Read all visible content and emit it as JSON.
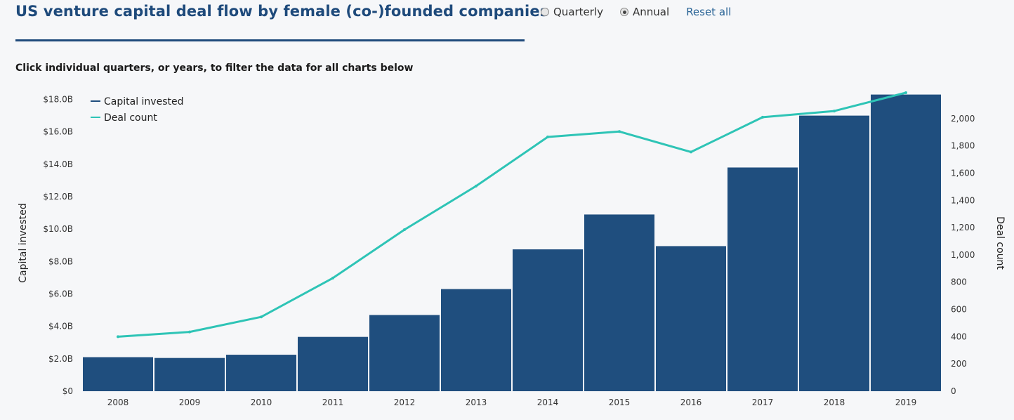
{
  "header": {
    "title": "US venture capital deal flow by female (co-)founded companies",
    "subtitle": "Click individual quarters, or years, to filter the data for all charts below"
  },
  "controls": {
    "quarterly_label": "Quarterly",
    "annual_label": "Annual",
    "selected": "Annual",
    "reset_label": "Reset all"
  },
  "colors": {
    "bar": "#1f4e7e",
    "line": "#2ec4b6",
    "title": "#1e4a7b"
  },
  "chart_data": {
    "type": "bar",
    "categories": [
      "2008",
      "2009",
      "2010",
      "2011",
      "2012",
      "2013",
      "2014",
      "2015",
      "2016",
      "2017",
      "2018",
      "2019"
    ],
    "series": [
      {
        "name": "Capital invested",
        "type": "bar",
        "axis": "left",
        "values": [
          2.1,
          2.05,
          2.25,
          3.35,
          4.7,
          6.3,
          8.75,
          10.9,
          8.95,
          13.8,
          17.0,
          18.3
        ]
      },
      {
        "name": "Deal count",
        "type": "line",
        "axis": "right",
        "values": [
          400,
          435,
          545,
          830,
          1185,
          1505,
          1865,
          1905,
          1755,
          2010,
          2055,
          2190
        ]
      }
    ],
    "title": "US venture capital deal flow by female (co-)founded companies",
    "ylabel": "Capital invested",
    "y2label": "Deal count",
    "ylim": [
      0,
      18.5
    ],
    "y2lim": [
      0,
      2200
    ],
    "yticks": [
      {
        "value": 0,
        "label": "$0"
      },
      {
        "value": 2,
        "label": "$2.0B"
      },
      {
        "value": 4,
        "label": "$4.0B"
      },
      {
        "value": 6,
        "label": "$6.0B"
      },
      {
        "value": 8,
        "label": "$8.0B"
      },
      {
        "value": 10,
        "label": "$10.0B"
      },
      {
        "value": 12,
        "label": "$12.0B"
      },
      {
        "value": 14,
        "label": "$14.0B"
      },
      {
        "value": 16,
        "label": "$16.0B"
      },
      {
        "value": 18,
        "label": "$18.0B"
      }
    ],
    "y2ticks": [
      {
        "value": 0,
        "label": "0"
      },
      {
        "value": 200,
        "label": "200"
      },
      {
        "value": 400,
        "label": "400"
      },
      {
        "value": 600,
        "label": "600"
      },
      {
        "value": 800,
        "label": "800"
      },
      {
        "value": 1000,
        "label": "1,000"
      },
      {
        "value": 1200,
        "label": "1,200"
      },
      {
        "value": 1400,
        "label": "1,400"
      },
      {
        "value": 1600,
        "label": "1,600"
      },
      {
        "value": 1800,
        "label": "1,800"
      },
      {
        "value": 2000,
        "label": "2,000"
      }
    ],
    "legend": [
      "Capital invested",
      "Deal count"
    ],
    "legend_position": "top-left",
    "grid": false
  }
}
